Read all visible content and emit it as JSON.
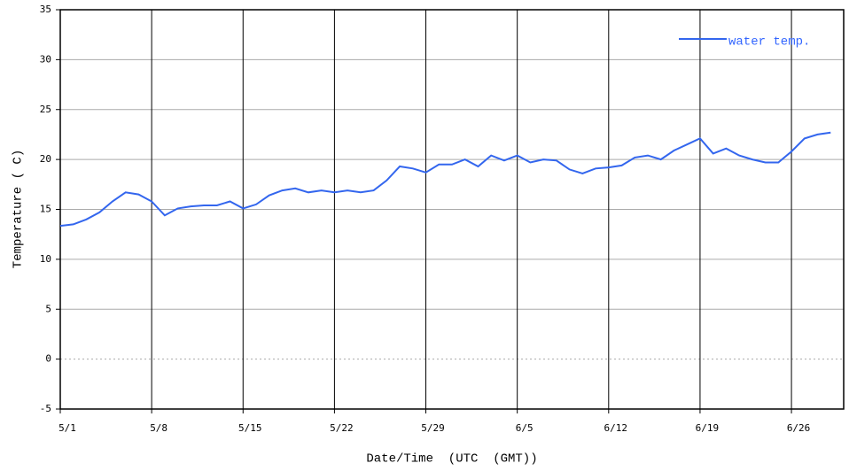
{
  "chart_data": {
    "type": "line",
    "x_label": "Date/Time  (UTC  (GMT))",
    "y_label": "Temperature ( C)",
    "x": [
      "5/1",
      "5/2",
      "5/3",
      "5/4",
      "5/5",
      "5/6",
      "5/7",
      "5/8",
      "5/9",
      "5/10",
      "5/11",
      "5/12",
      "5/13",
      "5/14",
      "5/15",
      "5/16",
      "5/17",
      "5/18",
      "5/19",
      "5/20",
      "5/21",
      "5/22",
      "5/23",
      "5/24",
      "5/25",
      "5/26",
      "5/27",
      "5/28",
      "5/29",
      "5/30",
      "5/31",
      "6/1",
      "6/2",
      "6/3",
      "6/4",
      "6/5",
      "6/6",
      "6/7",
      "6/8",
      "6/9",
      "6/10",
      "6/11",
      "6/12",
      "6/13",
      "6/14",
      "6/15",
      "6/16",
      "6/17",
      "6/18",
      "6/19",
      "6/20",
      "6/21",
      "6/22",
      "6/23",
      "6/24",
      "6/25",
      "6/26",
      "6/27",
      "6/28",
      "6/29"
    ],
    "series": [
      {
        "name": "water temp.",
        "color": "#3366ee",
        "values": [
          13.35,
          13.5,
          14.0,
          14.7,
          15.8,
          16.7,
          16.5,
          15.8,
          14.4,
          15.1,
          15.3,
          15.4,
          15.4,
          15.8,
          15.1,
          15.5,
          16.4,
          16.9,
          17.1,
          16.7,
          16.9,
          16.7,
          16.9,
          16.7,
          16.9,
          17.9,
          19.3,
          19.1,
          18.7,
          19.5,
          19.5,
          20.0,
          19.3,
          20.4,
          19.9,
          20.4,
          19.7,
          20.0,
          19.9,
          19.0,
          18.6,
          19.1,
          19.2,
          19.4,
          20.2,
          20.4,
          20.0,
          20.9,
          21.5,
          22.1,
          20.6,
          21.1,
          20.4,
          20.0,
          19.7,
          19.7,
          20.8,
          22.1,
          22.5,
          22.7
        ]
      }
    ],
    "xlim": [
      "5/1",
      "6/30"
    ],
    "xticks": [
      "5/1",
      "5/8",
      "5/15",
      "5/22",
      "5/29",
      "6/5",
      "6/12",
      "6/19",
      "6/26"
    ],
    "ylim": [
      -5,
      35
    ],
    "yticks": [
      -5,
      0,
      5,
      10,
      15,
      20,
      25,
      30,
      35
    ],
    "grid": true,
    "legend": "top-right"
  }
}
